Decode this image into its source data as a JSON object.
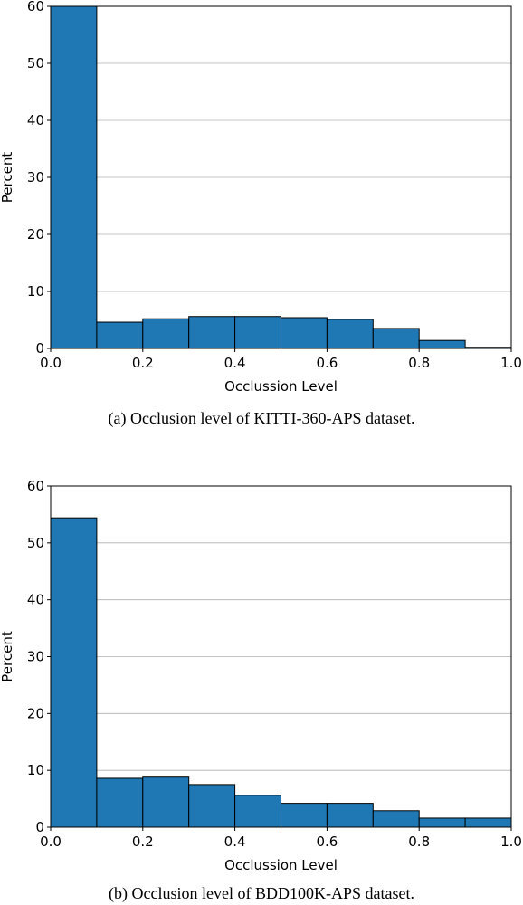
{
  "chart_data": [
    {
      "type": "bar",
      "caption": "(a) Occlusion level of KITTI-360-APS dataset.",
      "xlabel": "Occlussion Level",
      "ylabel": "Percent",
      "xlim": [
        0.0,
        1.0
      ],
      "ylim": [
        0,
        60
      ],
      "xticks": [
        "0.0",
        "0.2",
        "0.4",
        "0.6",
        "0.8",
        "1.0"
      ],
      "yticks": [
        "0",
        "10",
        "20",
        "30",
        "40",
        "50",
        "60"
      ],
      "grid": "horizontal",
      "bin_edges": [
        0.0,
        0.1,
        0.2,
        0.3,
        0.4,
        0.5,
        0.6,
        0.7,
        0.8,
        0.9,
        1.0
      ],
      "values": [
        60.0,
        4.6,
        5.2,
        5.6,
        5.6,
        5.4,
        5.1,
        3.5,
        1.4,
        0.2
      ],
      "bar_color": "#1f77b4"
    },
    {
      "type": "bar",
      "caption": "(b) Occlusion level of BDD100K-APS dataset.",
      "xlabel": "Occlussion Level",
      "ylabel": "Percent",
      "xlim": [
        0.0,
        1.0
      ],
      "ylim": [
        0,
        60
      ],
      "xticks": [
        "0.0",
        "0.2",
        "0.4",
        "0.6",
        "0.8",
        "1.0"
      ],
      "yticks": [
        "0",
        "10",
        "20",
        "30",
        "40",
        "50",
        "60"
      ],
      "grid": "horizontal",
      "bin_edges": [
        0.0,
        0.1,
        0.2,
        0.3,
        0.4,
        0.5,
        0.6,
        0.7,
        0.8,
        0.9,
        1.0
      ],
      "values": [
        54.4,
        8.6,
        8.8,
        7.5,
        5.6,
        4.2,
        4.2,
        2.9,
        1.6,
        1.6
      ],
      "bar_color": "#1f77b4"
    }
  ]
}
